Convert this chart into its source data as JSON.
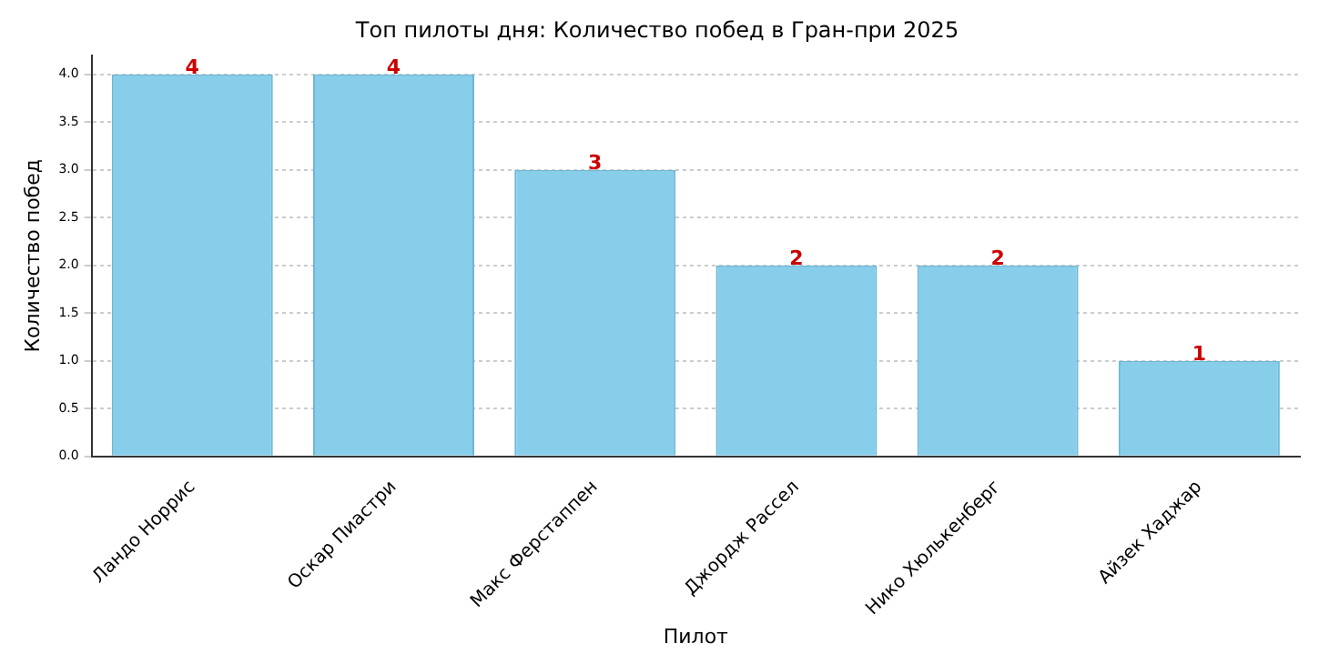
{
  "chart_data": {
    "type": "bar",
    "title": "Топ пилоты дня: Количество побед в Гран-при 2025",
    "xlabel": "Пилот",
    "ylabel": "Количество побед",
    "categories": [
      "Ландо Норрис",
      "Оскар Пиастри",
      "Макс Ферстаппен",
      "Джордж Рассел",
      "Нико Хюлькенберг",
      "Айзек Хаджар"
    ],
    "values": [
      4,
      4,
      3,
      2,
      2,
      1
    ],
    "color": "#87ceeb",
    "ylim": [
      0,
      4.2
    ],
    "yticks": [
      {
        "value": 0,
        "label": "0.0"
      },
      {
        "value": 0.5,
        "label": "0.5"
      },
      {
        "value": 1,
        "label": "1.0"
      },
      {
        "value": 1.5,
        "label": "1.5"
      },
      {
        "value": 2,
        "label": "2.0"
      },
      {
        "value": 2.5,
        "label": "2.5"
      },
      {
        "value": 3,
        "label": "3.0"
      },
      {
        "value": 3.5,
        "label": "3.5"
      },
      {
        "value": 4,
        "label": "4.0"
      }
    ],
    "grid": "y",
    "data_labels": true
  }
}
